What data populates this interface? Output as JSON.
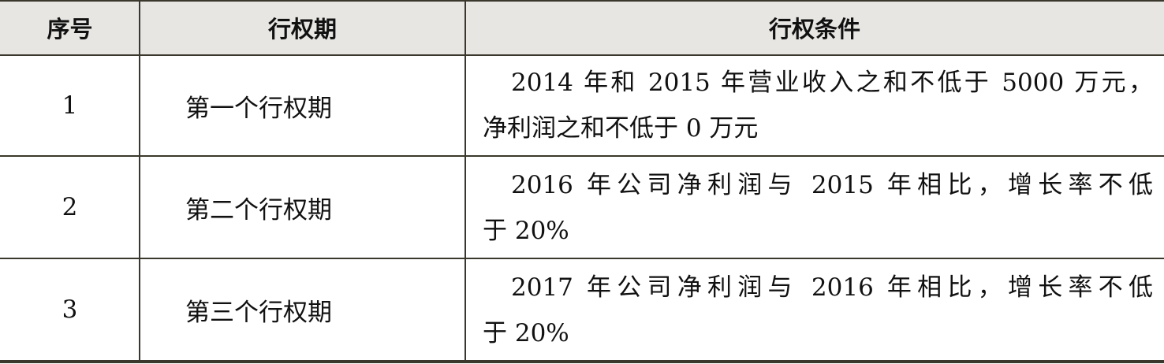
{
  "table": {
    "headers": [
      "序号",
      "行权期",
      "行权条件"
    ],
    "rows": [
      {
        "no": "1",
        "period": "第一个行权期",
        "condition_line1": "2014 年和 2015 年营业收入之和不低于 5000 万元，",
        "condition_line2": "净利润之和不低于 0 万元"
      },
      {
        "no": "2",
        "period": "第二个行权期",
        "condition_line1": "2016 年公司净利润与 2015 年相比，增长率不低",
        "condition_line2": "于 20%"
      },
      {
        "no": "3",
        "period": "第三个行权期",
        "condition_line1": "2017 年公司净利润与 2016 年相比，增长率不低",
        "condition_line2": "于 20%"
      }
    ],
    "header_bg": "#e8e6e3"
  }
}
